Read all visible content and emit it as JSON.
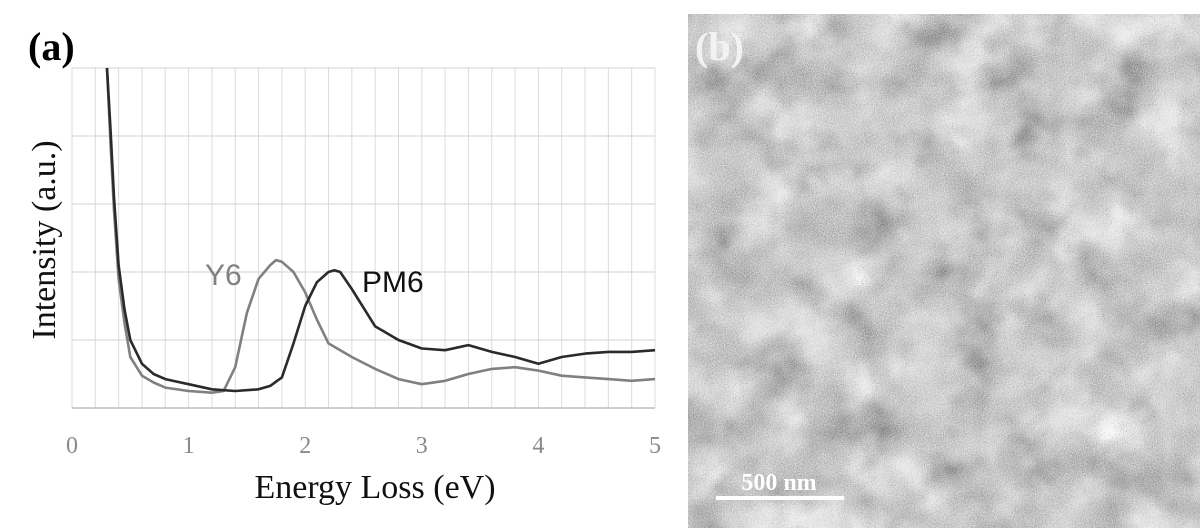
{
  "panel_a_label": "(a)",
  "panel_b_label": "(b)",
  "scalebar_label": "500 nm",
  "colors": {
    "Y6": "#808080",
    "PM6": "#2a2a2a",
    "grid": "#dcdcdc"
  },
  "chart_data": {
    "type": "line",
    "title": "",
    "xlabel": "Energy Loss (eV)",
    "ylabel": "Intensity (a.u.)",
    "xlim": [
      0,
      5
    ],
    "ylim": [
      0,
      1
    ],
    "xticks": [
      "0",
      "1",
      "2",
      "3",
      "4",
      "5"
    ],
    "grid": true,
    "series": [
      {
        "name": "Y6",
        "x": [
          0.3,
          0.33,
          0.36,
          0.4,
          0.45,
          0.5,
          0.6,
          0.7,
          0.8,
          1.0,
          1.2,
          1.3,
          1.4,
          1.5,
          1.6,
          1.7,
          1.75,
          1.8,
          1.9,
          2.0,
          2.1,
          2.2,
          2.4,
          2.6,
          2.8,
          3.0,
          3.2,
          3.4,
          3.6,
          3.8,
          4.0,
          4.2,
          4.4,
          4.6,
          4.8,
          5.0
        ],
        "values": [
          1.0,
          0.78,
          0.58,
          0.38,
          0.25,
          0.15,
          0.095,
          0.075,
          0.06,
          0.05,
          0.045,
          0.05,
          0.12,
          0.28,
          0.38,
          0.42,
          0.435,
          0.43,
          0.4,
          0.34,
          0.26,
          0.19,
          0.15,
          0.115,
          0.085,
          0.07,
          0.08,
          0.1,
          0.115,
          0.12,
          0.11,
          0.095,
          0.09,
          0.085,
          0.08,
          0.085
        ]
      },
      {
        "name": "PM6",
        "x": [
          0.3,
          0.33,
          0.36,
          0.4,
          0.45,
          0.5,
          0.6,
          0.7,
          0.8,
          1.0,
          1.2,
          1.4,
          1.6,
          1.7,
          1.8,
          1.9,
          2.0,
          2.1,
          2.2,
          2.25,
          2.3,
          2.4,
          2.6,
          2.8,
          3.0,
          3.2,
          3.4,
          3.6,
          3.8,
          4.0,
          4.2,
          4.4,
          4.6,
          4.8,
          5.0
        ],
        "values": [
          1.0,
          0.82,
          0.62,
          0.42,
          0.29,
          0.2,
          0.13,
          0.1,
          0.085,
          0.07,
          0.055,
          0.05,
          0.055,
          0.065,
          0.09,
          0.19,
          0.3,
          0.37,
          0.4,
          0.405,
          0.4,
          0.35,
          0.24,
          0.2,
          0.175,
          0.17,
          0.185,
          0.165,
          0.15,
          0.13,
          0.15,
          0.16,
          0.165,
          0.165,
          0.17
        ]
      }
    ]
  }
}
